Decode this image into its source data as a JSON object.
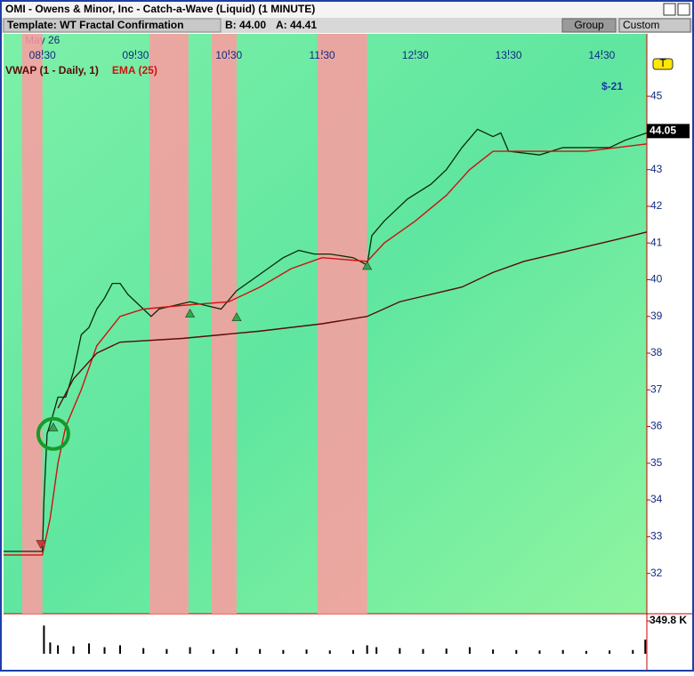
{
  "window": {
    "title": "OMI - Owens & Minor, Inc - Catch-a-Wave (Liquid) (1 MINUTE)"
  },
  "toolbar": {
    "template": "Template: WT Fractal Confirmation",
    "bid": "B: 44.00",
    "ask": "A: 44.41",
    "buttons": [
      "Group",
      "Custom"
    ]
  },
  "chart_data": {
    "type": "line",
    "date_label": "May 26",
    "xlim": [
      485,
      899
    ],
    "xticks": [
      {
        "value": 510,
        "label": "08:30"
      },
      {
        "value": 570,
        "label": "09:30"
      },
      {
        "value": 630,
        "label": "10:30"
      },
      {
        "value": 690,
        "label": "11:30"
      },
      {
        "value": 750,
        "label": "12:30"
      },
      {
        "value": 810,
        "label": "13:30"
      },
      {
        "value": 870,
        "label": "14:30"
      }
    ],
    "ylim": [
      30.9,
      46.7
    ],
    "yticks": [
      32,
      33,
      34,
      35,
      36,
      37,
      38,
      39,
      40,
      41,
      42,
      43,
      44,
      45
    ],
    "bands": [
      {
        "from": 497,
        "to": 510,
        "color": "#ff9aa0"
      },
      {
        "from": 579,
        "to": 604,
        "color": "#ff9aa0"
      },
      {
        "from": 619,
        "to": 635,
        "color": "#ff9aa0"
      },
      {
        "from": 687,
        "to": 719,
        "color": "#ff9aa0"
      }
    ],
    "series": [
      {
        "color": "#0a2a0a",
        "x": [
          485,
          510,
          511,
          513,
          516,
          520,
          525,
          530,
          535,
          540,
          545,
          550,
          555,
          560,
          565,
          570,
          575,
          580,
          585,
          595,
          605,
          615,
          625,
          635,
          645,
          655,
          665,
          675,
          685,
          695,
          710,
          719,
          722,
          730,
          745,
          760,
          770,
          780,
          790,
          800,
          805,
          810,
          830,
          845,
          860,
          875,
          885,
          899
        ],
        "values": [
          32.6,
          32.6,
          34.0,
          35.8,
          36.2,
          36.8,
          36.8,
          37.5,
          38.5,
          38.7,
          39.2,
          39.5,
          39.9,
          39.9,
          39.6,
          39.4,
          39.2,
          39.0,
          39.2,
          39.3,
          39.4,
          39.3,
          39.2,
          39.7,
          40.0,
          40.3,
          40.6,
          40.8,
          40.7,
          40.7,
          40.6,
          40.4,
          41.2,
          41.6,
          42.2,
          42.6,
          43.0,
          43.6,
          44.1,
          43.9,
          44.0,
          43.5,
          43.4,
          43.6,
          43.6,
          43.6,
          43.8,
          44.0
        ]
      },
      {
        "name": "EMA (25)",
        "color": "#d01010",
        "x": [
          485,
          510,
          515,
          520,
          525,
          535,
          545,
          560,
          575,
          600,
          630,
          650,
          670,
          690,
          719,
          730,
          750,
          770,
          785,
          800,
          830,
          860,
          899
        ],
        "values": [
          32.5,
          32.5,
          33.5,
          35.0,
          36.0,
          37.0,
          38.2,
          39.0,
          39.2,
          39.3,
          39.4,
          39.8,
          40.3,
          40.6,
          40.5,
          41.0,
          41.6,
          42.3,
          43.0,
          43.5,
          43.5,
          43.5,
          43.7
        ]
      },
      {
        "name": "VWAP (1 - Daily, 1)",
        "color": "#5a0a0a",
        "x": [
          520,
          530,
          545,
          560,
          600,
          650,
          690,
          719,
          740,
          780,
          800,
          820,
          850,
          880,
          899
        ],
        "values": [
          36.5,
          37.3,
          38.0,
          38.3,
          38.4,
          38.6,
          38.8,
          39.0,
          39.4,
          39.8,
          40.2,
          40.5,
          40.8,
          41.1,
          41.3
        ]
      }
    ],
    "signals": [
      {
        "x": 509,
        "y": 32.8,
        "dir": "down"
      },
      {
        "x": 517,
        "y": 36.0,
        "dir": "up"
      },
      {
        "x": 605,
        "y": 39.1,
        "dir": "up"
      },
      {
        "x": 635,
        "y": 39.0,
        "dir": "up"
      },
      {
        "x": 719,
        "y": 40.4,
        "dir": "up"
      }
    ],
    "circle": {
      "x": 517,
      "y": 35.8
    },
    "pnl": "$-21",
    "last_price": 44.05,
    "tag": "T",
    "volume": {
      "ylim": [
        0,
        349800
      ],
      "yticks": [
        {
          "value": 349800,
          "label": "349.8 K"
        }
      ],
      "x": [
        511,
        515,
        520,
        530,
        540,
        550,
        560,
        575,
        590,
        605,
        620,
        635,
        650,
        665,
        680,
        695,
        710,
        719,
        725,
        740,
        755,
        770,
        785,
        800,
        815,
        830,
        845,
        860,
        875,
        890,
        898
      ],
      "values": [
        300000,
        120000,
        90000,
        80000,
        110000,
        70000,
        90000,
        60000,
        50000,
        70000,
        45000,
        60000,
        50000,
        40000,
        45000,
        35000,
        40000,
        90000,
        70000,
        60000,
        50000,
        55000,
        70000,
        45000,
        40000,
        35000,
        40000,
        30000,
        35000,
        40000,
        150000
      ]
    }
  }
}
